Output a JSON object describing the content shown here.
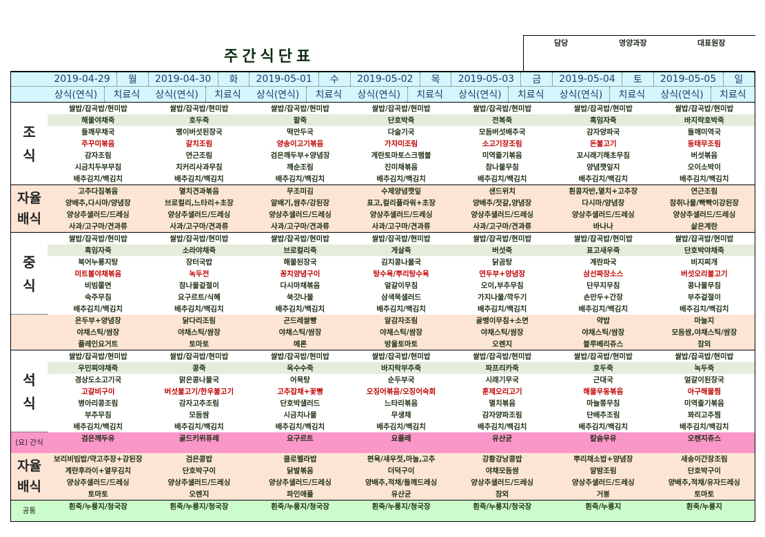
{
  "title": "주간식단표",
  "approval": [
    "담당",
    "영양과장",
    "대표원장"
  ],
  "days": [
    {
      "date": "2019-04-29",
      "weekday": "월"
    },
    {
      "date": "2019-04-30",
      "weekday": "화"
    },
    {
      "date": "2019-05-01",
      "weekday": "수"
    },
    {
      "date": "2019-05-02",
      "weekday": "목"
    },
    {
      "date": "2019-05-03",
      "weekday": "금"
    },
    {
      "date": "2019-05-04",
      "weekday": "토"
    },
    {
      "date": "2019-05-05",
      "weekday": "일"
    }
  ],
  "subheader": {
    "regular": "상식(연식)",
    "therapeutic": "치료식"
  },
  "colors": {
    "header": "#d4f6fc",
    "porridge_row": "#e6ecdb",
    "self_serve": "#fde5d6",
    "snack": "#fb96c8",
    "common": "#ccfccc",
    "main_dish": "#c00000"
  },
  "sections": [
    {
      "label": "조식",
      "bg": "",
      "porridge_row": 1,
      "red_row": 3,
      "rows": [
        [
          "쌀밥/잡곡밥/현미밥",
          "쌀밥/잡곡밥/현미밥",
          "쌀밥/잡곡밥/현미밥",
          "쌀밥/잡곡밥/현미밥",
          "쌀밥/잡곡밥/현미밥",
          "쌀밥/잡곡밥/현미밥",
          "쌀밥/잡곡밥/현미밥"
        ],
        [
          "해물야채죽",
          "호두죽",
          "팥죽",
          "단호박죽",
          "전복죽",
          "흑임자죽",
          "바지락호박죽"
        ],
        [
          "들깨무채국",
          "팽이버섯된장국",
          "떡만두국",
          "다슬기국",
          "모듬버섯배추국",
          "감자양파국",
          "들깨미역국"
        ],
        [
          "주꾸미볶음",
          "갈치조림",
          "양송이고기볶음",
          "가자미조림",
          "소고기장조림",
          "돈불고기",
          "동태무조림"
        ],
        [
          "감자조림",
          "연근조림",
          "검은깨두부+양념장",
          "계란토마토스크램블",
          "미역줄기볶음",
          "꼬시래기해초무침",
          "버섯볶음"
        ],
        [
          "시금치두부무침",
          "치커리사과무침",
          "깨순조림",
          "진미채볶음",
          "참나물무침",
          "양념깻잎지",
          "오이소박이"
        ],
        [
          "배추김치/백김치",
          "배추김치/백김치",
          "배추김치/백김치",
          "배추김치/백김치",
          "배추김치/백김치",
          "배추김치/백김치",
          "배추김치/백김치"
        ]
      ]
    },
    {
      "label": "자율배식",
      "bg": "peach",
      "rows": [
        [
          "고추다짐볶음",
          "멸치견과볶음",
          "무조미김",
          "수제양념깻잎",
          "샌드위치",
          "흰콩자반,멸치+고추장",
          "연근조림"
        ],
        [
          "양배추,다시마/양념장",
          "브로컬리,느타리+초장",
          "알배기,쌈추/강된장",
          "표고,컬리플라워+초장",
          "양배추/젓갈,양념장",
          "다시마/양념장",
          "참취나물/빡빡이강된장"
        ],
        [
          "양상추샐러드/드레싱",
          "양상추샐러드/드레싱",
          "양상추샐러드/드레싱",
          "양상추샐러드/드레싱",
          "양상추샐러드/드레싱",
          "양상추샐러드/드레싱",
          "양상추샐러드/드레싱"
        ],
        [
          "사과/고구마/견과류",
          "사과/고구마/견과류",
          "사과/고구마/견과류",
          "사과/고구마/견과류",
          "사과/고구마/견과류",
          "바나나",
          "삶은계란"
        ]
      ]
    },
    {
      "label": "중식",
      "bg": "",
      "porridge_row": 1,
      "red_row": 3,
      "rows": [
        [
          "쌀밥/잡곡밥/현미밥",
          "쌀밥/잡곡밥/현미밥",
          "쌀밥/잡곡밥/현미밥",
          "쌀밥/잡곡밥/현미밥",
          "쌀밥/잡곡밥/현미밥",
          "쌀밥/잡곡밥/현미밥",
          "쌀밥/잡곡밥/현미밥"
        ],
        [
          "흑임자죽",
          "소라야채죽",
          "브로컬리죽",
          "게살죽",
          "버섯죽",
          "표고새우죽",
          "단호박야채죽"
        ],
        [
          "북어누룽지탕",
          "장터국밥",
          "해물된장국",
          "김치콩나물국",
          "닭곰탕",
          "계란파국",
          "비지찌개"
        ],
        [
          "미트볼야채볶음",
          "녹두전",
          "꽁치양념구이",
          "탕수육/뿌리탕수육",
          "연두부+양념장",
          "삼선짜장소스",
          "버섯오리불고기"
        ],
        [
          "비빔쫄면",
          "참나물겉절이",
          "다시마채볶음",
          "얼갈이무침",
          "오이,부추무침",
          "단무지무침",
          "콩나물무침"
        ],
        [
          "숙주무침",
          "요구르트/식혜",
          "쑥갓나물",
          "삼색묵샐러드",
          "가지나물/깍두기",
          "손만두+간장",
          "부추겉절이"
        ],
        [
          "배추김치/백김치",
          "배추김치/백김치",
          "배추김치/백김치",
          "배추김치/백김치",
          "배추김치/백김치",
          "배추김치/백김치",
          "배추김치/백김치"
        ]
      ]
    },
    {
      "label": "",
      "bg": "peach",
      "dotted": true,
      "rows": [
        [
          "온두부+양념장",
          "닭다리조림",
          "곤드레쌀빵",
          "알감자조림",
          "골뱅이무침+소면",
          "약밥",
          "마늘지"
        ],
        [
          "야채스틱/쌈장",
          "야채스틱/쌈장",
          "야채스틱/쌈장",
          "야채스틱/쌈장",
          "야채스틱/쌈장",
          "야채스틱/쌈장",
          "모듬쌈,야채스틱/쌈장"
        ],
        [
          "플레인요거트",
          "토마토",
          "메론",
          "방울토마토",
          "오렌지",
          "블루베리쥬스",
          "참외"
        ]
      ]
    },
    {
      "label": "석식",
      "bg": "",
      "porridge_row": 1,
      "red_row": 3,
      "rows": [
        [
          "쌀밥/잡곡밥/현미밥",
          "쌀밥/잡곡밥/현미밥",
          "쌀밥/잡곡밥/현미밥",
          "쌀밥/잡곡밥/현미밥",
          "쌀밥/잡곡밥/현미밥",
          "쌀밥/잡곡밥/현미밥",
          "쌀밥/잡곡밥/현미밥"
        ],
        [
          "우민찌야채죽",
          "콩죽",
          "옥수수죽",
          "바지락부추죽",
          "파프리카죽",
          "호두죽",
          "녹두죽"
        ],
        [
          "경상도소고기국",
          "맑은콩나물국",
          "어묵탕",
          "순두부국",
          "시래기무국",
          "근대국",
          "얼갈이된장국"
        ],
        [
          "고갈비구이",
          "버섯불고기/한우불고기",
          "고추잡채+꽃빵",
          "오징어볶음/오징어숙회",
          "훈제오리고기",
          "해물우동볶음",
          "아구해물찜"
        ],
        [
          "병아리콩조림",
          "감자고추조림",
          "단호박샐러드",
          "느타리볶음",
          "멸치볶음",
          "마늘쫑무침",
          "미역줄기볶음"
        ],
        [
          "부추무침",
          "모듬쌈",
          "시금치나물",
          "무생채",
          "감자양파조림",
          "단배추조림",
          "꽈리고추찜"
        ],
        [
          "배추김치/백김치",
          "배추김치/백김치",
          "배추김치/백김치",
          "배추김치/백김치",
          "배추김치/백김치",
          "배추김치/백김치",
          "배추김치/백김치"
        ]
      ]
    },
    {
      "label": "(요) 간식",
      "bg": "pink",
      "dotted": true,
      "small_label": true,
      "rows": [
        [
          "검은깨두유",
          "골드키위퓨레",
          "요구르트",
          "요플레",
          "유산균",
          "칼슘우유",
          "오렌지쥬스"
        ]
      ]
    },
    {
      "label": "자율배식",
      "bg": "peach",
      "nobord": true,
      "rows": [
        [
          "보리비빔밥/약고추장+강된장",
          "검은콩밥",
          "클로렐라밥",
          "편육/새우젓,마늘,고추",
          "강황강낭콩밥",
          "뿌리채소밥+양념장",
          "새송이간장조림"
        ],
        [
          "계란후라이+열무김치",
          "단호박구이",
          "닭발볶음",
          "더덕구이",
          "야채모듬쌈",
          "알밤조림",
          "단호박구이"
        ],
        [
          "양상추샐러드/드레싱",
          "양상추샐러드/드레싱",
          "양상추샐러드/드레싱",
          "양배추,적채/들깨드레싱",
          "양상추샐러드/드레싱",
          "양상추샐러드/드레싱",
          "양배추,적채/유자드레싱"
        ],
        [
          "토마토",
          "오렌지",
          "파인애플",
          "유산균",
          "참외",
          "거봉",
          "토마토"
        ]
      ]
    },
    {
      "label": "공통",
      "bg": "green",
      "small_label": true,
      "rows": [
        [
          "흰죽/누룽지/청국장",
          "흰죽/누룽지/청국장",
          "흰죽/누룽지/청국장",
          "흰죽/누룽지/청국장",
          "흰죽/누룽지/청국장",
          "흰죽/누룽지",
          "흰죽/누룽지"
        ]
      ]
    }
  ]
}
